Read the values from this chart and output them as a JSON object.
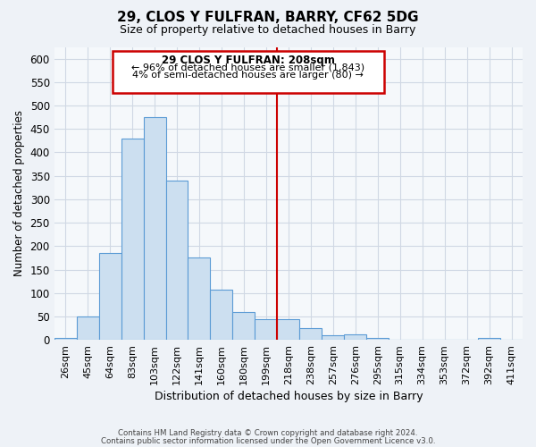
{
  "title": "29, CLOS Y FULFRAN, BARRY, CF62 5DG",
  "subtitle": "Size of property relative to detached houses in Barry",
  "xlabel": "Distribution of detached houses by size in Barry",
  "ylabel": "Number of detached properties",
  "bar_labels": [
    "26sqm",
    "45sqm",
    "64sqm",
    "83sqm",
    "103sqm",
    "122sqm",
    "141sqm",
    "160sqm",
    "180sqm",
    "199sqm",
    "218sqm",
    "238sqm",
    "257sqm",
    "276sqm",
    "295sqm",
    "315sqm",
    "334sqm",
    "353sqm",
    "372sqm",
    "392sqm",
    "411sqm"
  ],
  "bar_values": [
    5,
    50,
    185,
    430,
    475,
    340,
    175,
    108,
    60,
    45,
    45,
    25,
    10,
    12,
    5,
    0,
    0,
    0,
    0,
    5,
    0
  ],
  "bar_color": "#ccdff0",
  "bar_edge_color": "#5b9bd5",
  "vline_color": "#cc0000",
  "annotation_title": "29 CLOS Y FULFRAN: 208sqm",
  "annotation_line1": "← 96% of detached houses are smaller (1,843)",
  "annotation_line2": "4% of semi-detached houses are larger (80) →",
  "annotation_box_color": "#cc0000",
  "ylim": [
    0,
    625
  ],
  "yticks": [
    0,
    50,
    100,
    150,
    200,
    250,
    300,
    350,
    400,
    450,
    500,
    550,
    600
  ],
  "footer_line1": "Contains HM Land Registry data © Crown copyright and database right 2024.",
  "footer_line2": "Contains public sector information licensed under the Open Government Licence v3.0.",
  "background_color": "#eef2f7",
  "plot_bg_color": "#f5f8fb",
  "grid_color": "#d0d8e4"
}
